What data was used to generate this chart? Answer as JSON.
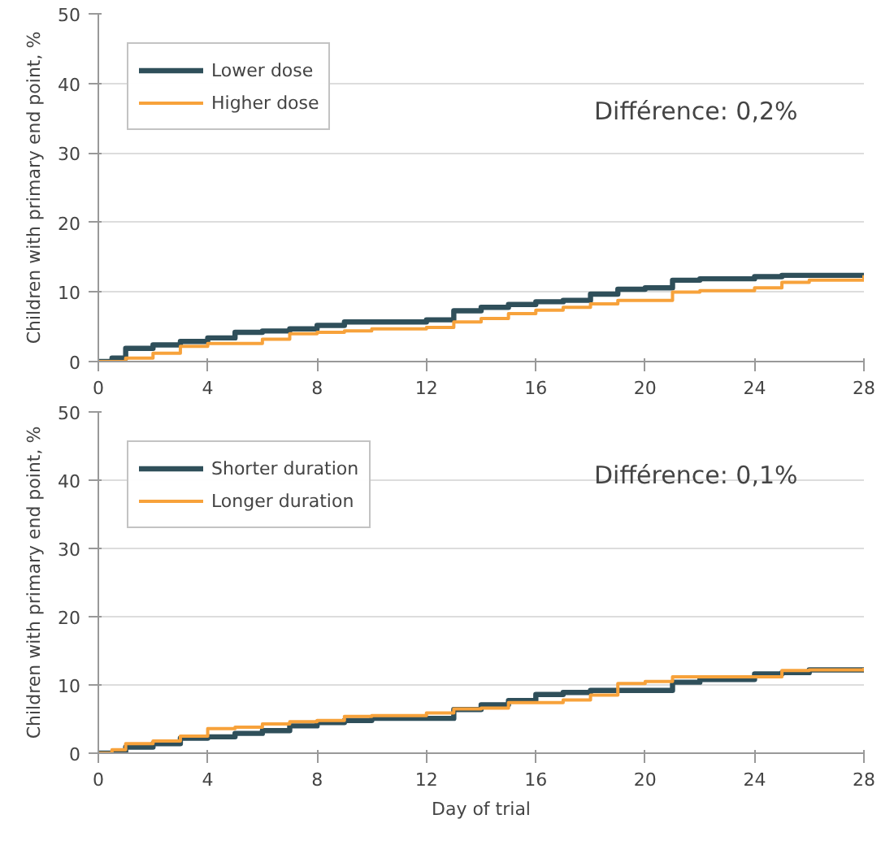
{
  "chart_data": [
    {
      "type": "step",
      "ylabel": "Children with primary end point, %",
      "xlim": [
        0,
        28
      ],
      "xticks": [
        0,
        4,
        8,
        12,
        16,
        20,
        24,
        28
      ],
      "ylim": [
        0,
        50
      ],
      "yticks": [
        0,
        10,
        20,
        30,
        40,
        50
      ],
      "grid": "y",
      "legend": "top left",
      "annotations": [
        "Différence:  0,2%"
      ],
      "series": [
        {
          "name": "Lower dose",
          "color": "#2f4f5a",
          "x": [
            0,
            0.5,
            1,
            2,
            3,
            4,
            5,
            6,
            7,
            8,
            9,
            12,
            13,
            14,
            15,
            16,
            17,
            18,
            19,
            20,
            21,
            22,
            24,
            25,
            28
          ],
          "values": [
            0,
            0.5,
            1.9,
            2.4,
            2.9,
            3.4,
            4.2,
            4.4,
            4.7,
            5.2,
            5.7,
            6.0,
            7.3,
            7.8,
            8.2,
            8.6,
            8.8,
            9.7,
            10.4,
            10.6,
            11.7,
            11.9,
            12.2,
            12.4,
            12.4
          ]
        },
        {
          "name": "Higher dose",
          "color": "#f7a23b",
          "x": [
            0,
            1,
            2,
            3,
            4,
            6,
            7,
            8,
            9,
            10,
            12,
            13,
            14,
            15,
            16,
            17,
            18,
            19,
            21,
            22,
            24,
            25,
            26,
            28
          ],
          "values": [
            0,
            0.5,
            1.2,
            2.2,
            2.6,
            3.2,
            4.0,
            4.2,
            4.4,
            4.7,
            4.9,
            5.7,
            6.2,
            6.9,
            7.4,
            7.8,
            8.3,
            8.8,
            10.0,
            10.2,
            10.6,
            11.4,
            11.7,
            12.4
          ]
        }
      ]
    },
    {
      "type": "step",
      "xlabel": "Day of trial",
      "ylabel": "Children with primary end point, %",
      "xlim": [
        0,
        28
      ],
      "xticks": [
        0,
        4,
        8,
        12,
        16,
        20,
        24,
        28
      ],
      "ylim": [
        0,
        50
      ],
      "yticks": [
        0,
        10,
        20,
        30,
        40,
        50
      ],
      "grid": "y",
      "legend": "top left",
      "annotations": [
        "Différence:  0,1%"
      ],
      "series": [
        {
          "name": "Shorter duration",
          "color": "#2f4f5a",
          "x": [
            0,
            1,
            2,
            3,
            4,
            5,
            6,
            7,
            8,
            9,
            10,
            13,
            14,
            15,
            16,
            17,
            18,
            21,
            22,
            24,
            25,
            26,
            28
          ],
          "values": [
            0,
            0.9,
            1.4,
            2.2,
            2.4,
            2.9,
            3.3,
            4.0,
            4.5,
            4.8,
            5.1,
            6.4,
            7.1,
            7.7,
            8.6,
            8.9,
            9.2,
            10.4,
            10.8,
            11.6,
            11.8,
            12.2,
            12.2
          ]
        },
        {
          "name": "Longer duration",
          "color": "#f7a23b",
          "x": [
            0,
            0.5,
            1,
            2,
            3,
            4,
            5,
            6,
            7,
            8,
            9,
            10,
            12,
            13,
            14,
            15,
            17,
            18,
            19,
            20,
            21,
            25,
            26,
            28
          ],
          "values": [
            0,
            0.5,
            1.4,
            1.8,
            2.5,
            3.6,
            3.8,
            4.3,
            4.6,
            4.8,
            5.4,
            5.5,
            5.9,
            6.5,
            6.6,
            7.4,
            7.8,
            8.5,
            10.2,
            10.5,
            11.2,
            12.1,
            12.2,
            12.5
          ]
        }
      ]
    }
  ]
}
